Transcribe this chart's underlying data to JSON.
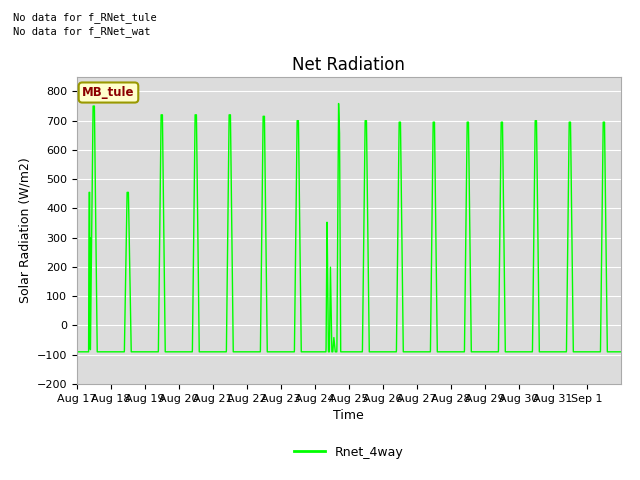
{
  "title": "Net Radiation",
  "xlabel": "Time",
  "ylabel": "Solar Radiation (W/m2)",
  "ylim": [
    -200,
    850
  ],
  "yticks": [
    -200,
    -100,
    0,
    100,
    200,
    300,
    400,
    500,
    600,
    700,
    800
  ],
  "line_color": "#00FF00",
  "line_width": 1.0,
  "bg_color": "#DCDCDC",
  "fig_bg_color": "#FFFFFF",
  "legend_label": "Rnet_4way",
  "note_line1": "No data for f_RNet_tule",
  "note_line2": "No data for f_RNet_wat",
  "legend_box_label": "MB_tule",
  "x_tick_labels": [
    "Aug 17",
    "Aug 18",
    "Aug 19",
    "Aug 20",
    "Aug 21",
    "Aug 22",
    "Aug 23",
    "Aug 24",
    "Aug 25",
    "Aug 26",
    "Aug 27",
    "Aug 28",
    "Aug 29",
    "Aug 30",
    "Aug 31",
    "Sep 1"
  ],
  "num_days": 16,
  "peak_values": [
    750,
    455,
    720,
    720,
    720,
    715,
    700,
    760,
    700,
    695,
    695,
    695,
    695,
    700,
    695,
    695
  ],
  "night_value": -90,
  "special_day_idx": 7,
  "title_fontsize": 12,
  "axis_fontsize": 9,
  "tick_fontsize": 8
}
